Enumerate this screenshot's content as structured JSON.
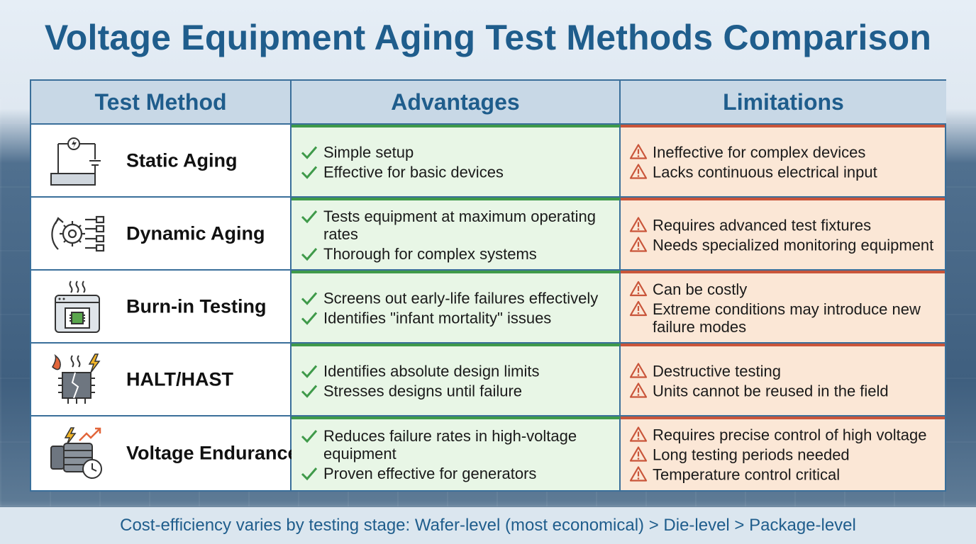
{
  "title": "Voltage Equipment Aging Test Methods Comparison",
  "headers": {
    "method": "Test Method",
    "advantages": "Advantages",
    "limitations": "Limitations"
  },
  "colors": {
    "accent": "#1f5d8c",
    "advantage_bg": "#e8f6e6",
    "advantage_line": "#3f9a4a",
    "limitation_bg": "#fbe7d6",
    "limitation_line": "#c9553a"
  },
  "rows": [
    {
      "method": "Static Aging",
      "icon": "circuit-battery-icon",
      "advantages": [
        "Simple setup",
        "Effective for basic devices"
      ],
      "limitations": [
        "Ineffective for complex devices",
        "Lacks continuous electrical input"
      ]
    },
    {
      "method": "Dynamic Aging",
      "icon": "gear-cycle-icon",
      "advantages": [
        "Tests equipment at maximum operating rates",
        "Thorough for complex systems"
      ],
      "limitations": [
        "Requires advanced test fixtures",
        "Needs specialized monitoring equipment"
      ]
    },
    {
      "method": "Burn-in Testing",
      "icon": "oven-chip-icon",
      "advantages": [
        "Screens out early-life failures effectively",
        "Identifies \"infant mortality\" issues"
      ],
      "limitations": [
        "Can be costly",
        "Extreme conditions may introduce new failure modes"
      ]
    },
    {
      "method": "HALT/HAST",
      "icon": "broken-chip-icon",
      "advantages": [
        "Identifies absolute design limits",
        "Stresses designs until failure"
      ],
      "limitations": [
        "Destructive testing",
        "Units cannot be reused in the field"
      ]
    },
    {
      "method": "Voltage Endurance",
      "icon": "generator-clock-icon",
      "advantages": [
        "Reduces failure rates in high-voltage equipment",
        "Proven effective for generators"
      ],
      "limitations": [
        "Requires precise control of high voltage",
        "Long testing periods needed",
        "Temperature control critical"
      ]
    }
  ],
  "footer": "Cost-efficiency varies by testing stage: Wafer-level (most economical) > Die-level > Package-level"
}
